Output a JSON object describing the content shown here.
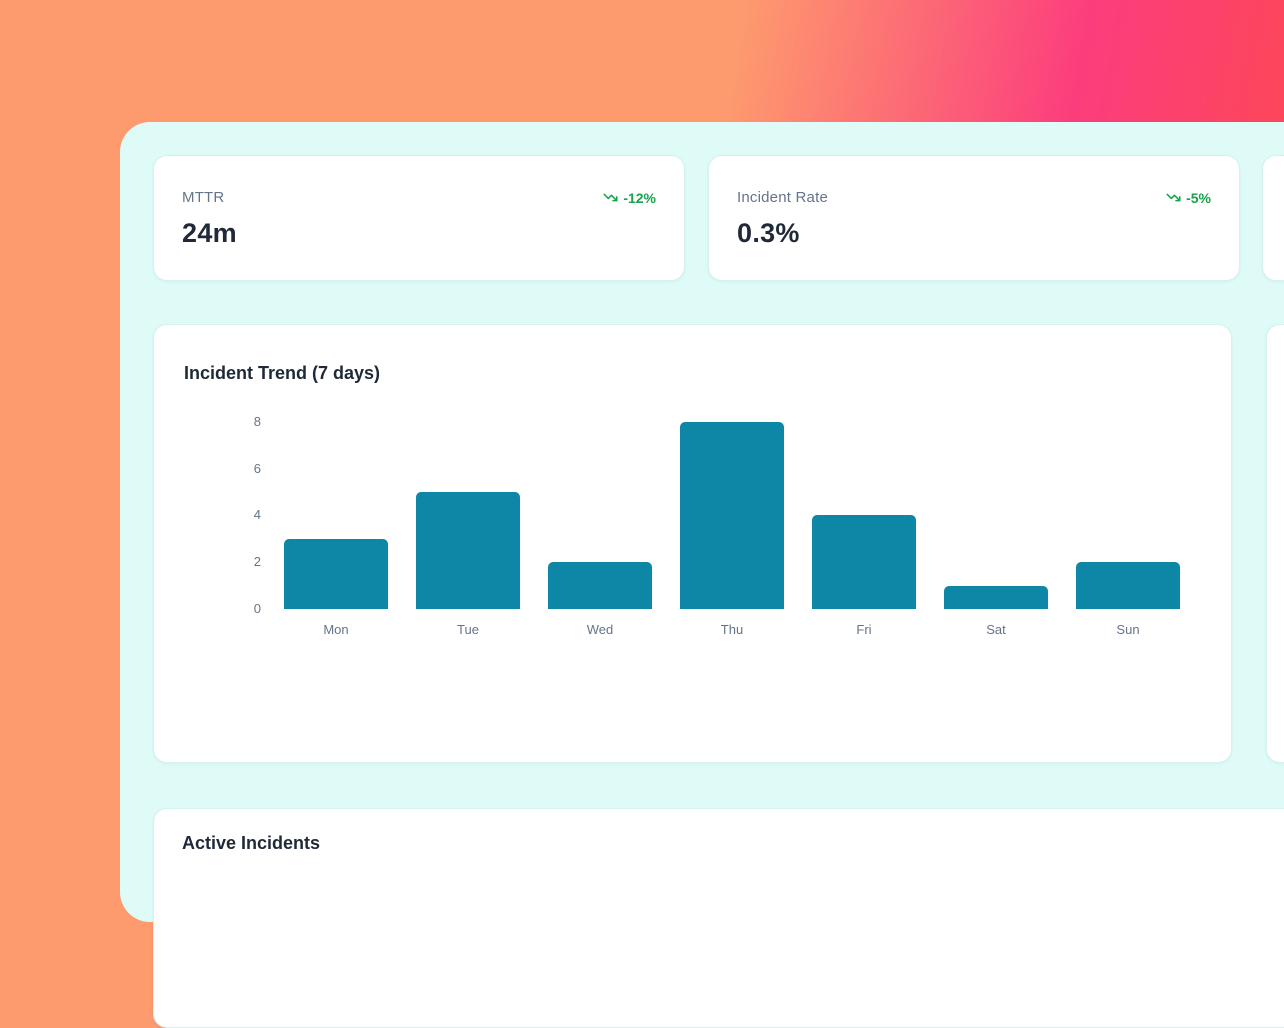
{
  "colors": {
    "bg_orange": "#fd9a6e",
    "bg_pink": "#fc3d7d",
    "bg_red": "#fd4a4c",
    "panel_mint": "#defbf8",
    "card_white": "#ffffff",
    "label_gray": "#64748b",
    "value_dark": "#1f2937",
    "trend_green": "#16a34a",
    "bar_teal": "#0e87a6"
  },
  "icons": {
    "stat_trend": "trending-down-icon"
  },
  "stat_cards": [
    {
      "label": "MTTR",
      "value": "24m",
      "trend": "-12%"
    },
    {
      "label": "Incident Rate",
      "value": "0.3%",
      "trend": "-5%"
    }
  ],
  "chart_card": {
    "title": "Incident Trend (7 days)"
  },
  "chart_data": {
    "type": "bar",
    "title": "Incident Trend (7 days)",
    "categories": [
      "Mon",
      "Tue",
      "Wed",
      "Thu",
      "Fri",
      "Sat",
      "Sun"
    ],
    "values": [
      3,
      5,
      2,
      8,
      4,
      1,
      2
    ],
    "yticks": [
      0,
      2,
      4,
      6,
      8
    ],
    "ylim": [
      0,
      8
    ],
    "xlabel": "",
    "ylabel": "",
    "grid": false,
    "legend": false,
    "bar_color": "#0e87a6"
  },
  "incidents_card": {
    "title": "Active Incidents"
  }
}
